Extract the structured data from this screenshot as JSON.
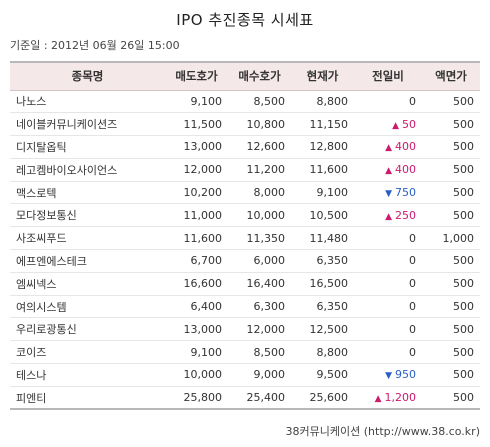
{
  "title": "IPO 추진종목 시세표",
  "base_date": "기준일 : 2012년 06월 26일 15:00",
  "columns": [
    "종목명",
    "매도호가",
    "매수호가",
    "현재가",
    "전일비",
    "액면가"
  ],
  "rows": [
    {
      "name": "나노스",
      "ask": "9,100",
      "bid": "8,500",
      "price": "8,800",
      "change": "0",
      "dir": "flat",
      "par": "500"
    },
    {
      "name": "네이블커뮤니케이션즈",
      "ask": "11,500",
      "bid": "10,800",
      "price": "11,150",
      "change": "50",
      "dir": "up",
      "par": "500"
    },
    {
      "name": "디지탈옵틱",
      "ask": "13,000",
      "bid": "12,600",
      "price": "12,800",
      "change": "400",
      "dir": "up",
      "par": "500"
    },
    {
      "name": "레고켐바이오사이언스",
      "ask": "12,000",
      "bid": "11,200",
      "price": "11,600",
      "change": "400",
      "dir": "up",
      "par": "500"
    },
    {
      "name": "맥스로텍",
      "ask": "10,200",
      "bid": "8,000",
      "price": "9,100",
      "change": "750",
      "dir": "down",
      "par": "500"
    },
    {
      "name": "모다정보통신",
      "ask": "11,000",
      "bid": "10,000",
      "price": "10,500",
      "change": "250",
      "dir": "up",
      "par": "500"
    },
    {
      "name": "사조씨푸드",
      "ask": "11,600",
      "bid": "11,350",
      "price": "11,480",
      "change": "0",
      "dir": "flat",
      "par": "1,000"
    },
    {
      "name": "에프엔에스테크",
      "ask": "6,700",
      "bid": "6,000",
      "price": "6,350",
      "change": "0",
      "dir": "flat",
      "par": "500"
    },
    {
      "name": "엠씨넥스",
      "ask": "16,600",
      "bid": "16,400",
      "price": "16,500",
      "change": "0",
      "dir": "flat",
      "par": "500"
    },
    {
      "name": "여의시스템",
      "ask": "6,400",
      "bid": "6,300",
      "price": "6,350",
      "change": "0",
      "dir": "flat",
      "par": "500"
    },
    {
      "name": "우리로광통신",
      "ask": "13,000",
      "bid": "12,000",
      "price": "12,500",
      "change": "0",
      "dir": "flat",
      "par": "500"
    },
    {
      "name": "코이즈",
      "ask": "9,100",
      "bid": "8,500",
      "price": "8,800",
      "change": "0",
      "dir": "flat",
      "par": "500"
    },
    {
      "name": "테스나",
      "ask": "10,000",
      "bid": "9,000",
      "price": "9,500",
      "change": "950",
      "dir": "down",
      "par": "500"
    },
    {
      "name": "피엔티",
      "ask": "25,800",
      "bid": "25,400",
      "price": "25,600",
      "change": "1,200",
      "dir": "up",
      "par": "500"
    }
  ],
  "arrows": {
    "up": "▲",
    "down": "▼",
    "flat": ""
  },
  "colors": {
    "up": "#cc1a6d",
    "down": "#2a5fc6",
    "header_bg": "#f4e8e8"
  },
  "source": "38커뮤니케이션 (http://www.38.co.kr)"
}
